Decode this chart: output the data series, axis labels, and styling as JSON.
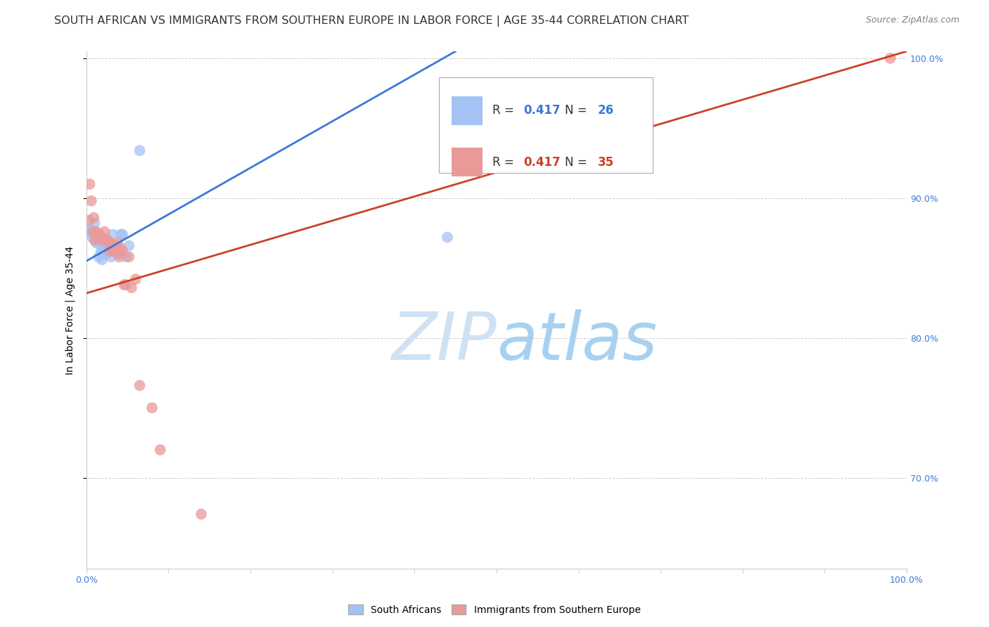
{
  "title": "SOUTH AFRICAN VS IMMIGRANTS FROM SOUTHERN EUROPE IN LABOR FORCE | AGE 35-44 CORRELATION CHART",
  "source": "Source: ZipAtlas.com",
  "ylabel": "In Labor Force | Age 35-44",
  "xlim": [
    0.0,
    1.0
  ],
  "ylim": [
    0.635,
    1.005
  ],
  "y_ticks_right": [
    0.7,
    0.8,
    0.9,
    1.0
  ],
  "y_tick_labels_right": [
    "70.0%",
    "80.0%",
    "90.0%",
    "100.0%"
  ],
  "blue_R": 0.417,
  "blue_N": 26,
  "pink_R": 0.417,
  "pink_N": 35,
  "blue_color": "#a4c2f4",
  "pink_color": "#ea9999",
  "blue_line_color": "#3c78d8",
  "pink_line_color": "#cc4125",
  "watermark_zip": "ZIP",
  "watermark_atlas": "atlas",
  "watermark_color_zip": "#cfe2f3",
  "watermark_color_atlas": "#a8d1f0",
  "blue_scatter_x": [
    0.003,
    0.004,
    0.007,
    0.01,
    0.01,
    0.012,
    0.013,
    0.015,
    0.016,
    0.018,
    0.019,
    0.02,
    0.022,
    0.024,
    0.026,
    0.028,
    0.03,
    0.032,
    0.035,
    0.038,
    0.042,
    0.044,
    0.048,
    0.052,
    0.065,
    0.44
  ],
  "blue_scatter_y": [
    0.878,
    0.876,
    0.872,
    0.876,
    0.882,
    0.868,
    0.872,
    0.858,
    0.868,
    0.862,
    0.856,
    0.862,
    0.87,
    0.86,
    0.862,
    0.864,
    0.858,
    0.874,
    0.866,
    0.86,
    0.874,
    0.874,
    0.858,
    0.866,
    0.934,
    0.872
  ],
  "pink_scatter_x": [
    0.003,
    0.004,
    0.006,
    0.008,
    0.009,
    0.01,
    0.012,
    0.014,
    0.015,
    0.016,
    0.018,
    0.02,
    0.022,
    0.024,
    0.025,
    0.026,
    0.028,
    0.03,
    0.032,
    0.034,
    0.036,
    0.038,
    0.04,
    0.042,
    0.044,
    0.046,
    0.048,
    0.052,
    0.055,
    0.06,
    0.065,
    0.08,
    0.09,
    0.14,
    0.98
  ],
  "pink_scatter_y": [
    0.884,
    0.91,
    0.898,
    0.876,
    0.886,
    0.87,
    0.876,
    0.872,
    0.874,
    0.874,
    0.872,
    0.87,
    0.876,
    0.87,
    0.87,
    0.868,
    0.862,
    0.868,
    0.864,
    0.862,
    0.866,
    0.868,
    0.858,
    0.864,
    0.862,
    0.838,
    0.838,
    0.858,
    0.836,
    0.842,
    0.766,
    0.75,
    0.72,
    0.674,
    1.0
  ],
  "blue_line_x0": 0.0,
  "blue_line_y0": 0.855,
  "blue_line_x1": 0.45,
  "blue_line_y1": 1.005,
  "pink_line_x0": 0.0,
  "pink_line_y0": 0.832,
  "pink_line_x1": 1.0,
  "pink_line_y1": 1.005,
  "grid_color": "#cccccc",
  "bg_color": "#ffffff",
  "title_color": "#333333",
  "axis_color": "#3c78d8",
  "title_fontsize": 11.5,
  "label_fontsize": 10
}
